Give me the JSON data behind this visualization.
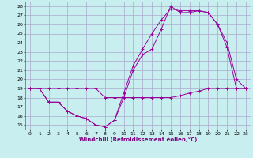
{
  "xlabel": "Windchill (Refroidissement éolien,°C)",
  "bg_color": "#c8eef0",
  "grid_color": "#aaaacc",
  "line_color": "#990099",
  "xlim": [
    -0.5,
    23.5
  ],
  "ylim": [
    14.5,
    28.5
  ],
  "xticks": [
    0,
    1,
    2,
    3,
    4,
    5,
    6,
    7,
    8,
    9,
    10,
    11,
    12,
    13,
    14,
    15,
    16,
    17,
    18,
    19,
    20,
    21,
    22,
    23
  ],
  "yticks": [
    15,
    16,
    17,
    18,
    19,
    20,
    21,
    22,
    23,
    24,
    25,
    26,
    27,
    28
  ],
  "series1_x": [
    0,
    1,
    2,
    3,
    4,
    5,
    6,
    7,
    8,
    9,
    10,
    11,
    12,
    13,
    14,
    15,
    16,
    17,
    18,
    19,
    20,
    21,
    22,
    23
  ],
  "series1_y": [
    19,
    19,
    17.5,
    17.5,
    16.5,
    16,
    15.7,
    15,
    14.8,
    15.5,
    18,
    21.0,
    22.7,
    23.3,
    25.5,
    28,
    27.3,
    27.3,
    27.5,
    27.3,
    26,
    24,
    20,
    19
  ],
  "series2_x": [
    0,
    1,
    2,
    3,
    4,
    5,
    6,
    7,
    8,
    9,
    10,
    11,
    12,
    13,
    14,
    15,
    16,
    17,
    18,
    19,
    20,
    21,
    22,
    23
  ],
  "series2_y": [
    19,
    19,
    17.5,
    17.5,
    16.5,
    16,
    15.7,
    15,
    14.8,
    15.5,
    18.5,
    21.5,
    23.3,
    25,
    26.5,
    27.7,
    27.5,
    27.5,
    27.5,
    27.3,
    26,
    23.5,
    19,
    19
  ],
  "series3_x": [
    0,
    1,
    2,
    3,
    4,
    5,
    6,
    7,
    8,
    9,
    10,
    11,
    12,
    13,
    14,
    15,
    16,
    17,
    18,
    19,
    20,
    21,
    22,
    23
  ],
  "series3_y": [
    19,
    19,
    19,
    19,
    19,
    19,
    19,
    19,
    18,
    18,
    18,
    18,
    18,
    18,
    18,
    18,
    18.2,
    18.5,
    18.7,
    19,
    19,
    19,
    19,
    19
  ]
}
